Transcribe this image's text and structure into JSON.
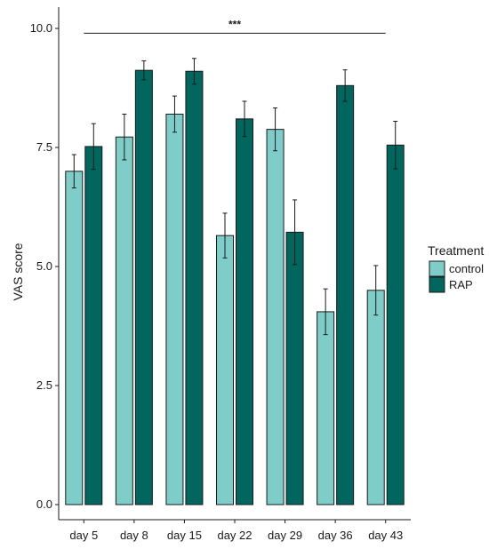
{
  "chart_data": {
    "type": "bar",
    "title": "",
    "xlabel": "",
    "ylabel": "VAS score",
    "ylim": [
      0,
      10.5
    ],
    "yticks": [
      "0.0",
      "2.5",
      "5.0",
      "7.5",
      "10.0"
    ],
    "categories": [
      "day 5",
      "day 8",
      "day 15",
      "day 22",
      "day 29",
      "day 36",
      "day 43"
    ],
    "series": [
      {
        "name": "control",
        "color": "#7fcdc8",
        "values": [
          7.0,
          7.72,
          8.2,
          5.65,
          7.88,
          4.05,
          4.5
        ],
        "errors": [
          0.35,
          0.48,
          0.38,
          0.47,
          0.45,
          0.48,
          0.52
        ]
      },
      {
        "name": "RAP",
        "color": "#00665e",
        "values": [
          7.52,
          9.12,
          9.1,
          8.1,
          5.72,
          8.8,
          7.55
        ],
        "errors": [
          0.48,
          0.2,
          0.27,
          0.37,
          0.68,
          0.33,
          0.5
        ]
      }
    ],
    "legend": {
      "title": "Treatment",
      "position": "right"
    },
    "significance": {
      "label": "***",
      "from_category": "day 5",
      "to_category": "day 43",
      "y": 9.9
    },
    "grid": false
  }
}
